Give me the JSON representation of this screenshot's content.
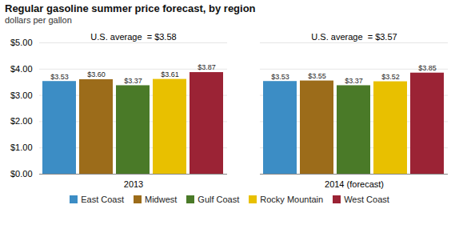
{
  "chart_data": {
    "type": "bar",
    "title": "Regular gasoline summer price forecast, by region",
    "subtitle": "dollars per gallon",
    "categories": [
      "2013",
      "2014 (forecast)"
    ],
    "series": [
      {
        "name": "East Coast",
        "color": "#3c8dc5",
        "values": [
          3.53,
          3.53
        ],
        "value_labels": [
          "$3.53",
          "$3.53"
        ]
      },
      {
        "name": "Midwest",
        "color": "#9c6c1a",
        "values": [
          3.6,
          3.55
        ],
        "value_labels": [
          "$3.60",
          "$3.55"
        ]
      },
      {
        "name": "Gulf Coast",
        "color": "#4a7a28",
        "values": [
          3.37,
          3.37
        ],
        "value_labels": [
          "$3.37",
          "$3.37"
        ]
      },
      {
        "name": "Rocky Mountain",
        "color": "#e8c000",
        "values": [
          3.61,
          3.52
        ],
        "value_labels": [
          "$3.61",
          "$3.52"
        ]
      },
      {
        "name": "West Coast",
        "color": "#9b2335",
        "values": [
          3.87,
          3.85
        ],
        "value_labels": [
          "$3.87",
          "$3.85"
        ]
      }
    ],
    "annotations": [
      "U.S. average  = $3.58",
      "U.S. average  = $3.57"
    ],
    "ylim": [
      0,
      5.0
    ],
    "yticks": [
      {
        "value": 0.0,
        "label": "$0.00"
      },
      {
        "value": 1.0,
        "label": "$1.00"
      },
      {
        "value": 2.0,
        "label": "$2.00"
      },
      {
        "value": 3.0,
        "label": "$3.00"
      },
      {
        "value": 4.0,
        "label": "$4.00"
      },
      {
        "value": 5.0,
        "label": "$5.00"
      }
    ],
    "grid": true,
    "legend": "bottom",
    "data_labels": true
  }
}
